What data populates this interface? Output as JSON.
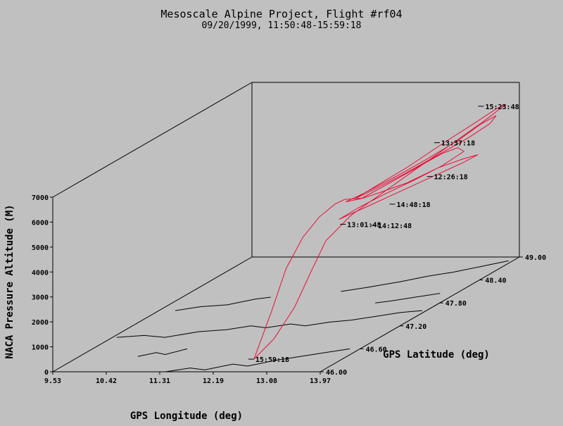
{
  "chart_data": {
    "type": "line",
    "title": "Mesoscale Alpine Project, Flight #rf04",
    "subtitle": "09/20/1999, 11:50:48-15:59:18",
    "xlabel": "GPS Longitude (deg)",
    "ylabel": "GPS Latitude (deg)",
    "zlabel": "NACA Pressure Altitude (M)",
    "x_ticks": [
      "9.53",
      "10.42",
      "11.31",
      "12.19",
      "13.08",
      "13.97"
    ],
    "y_ticks": [
      "46.00",
      "46.60",
      "47.20",
      "47.80",
      "48.40",
      "49.00"
    ],
    "z_ticks": [
      "0",
      "1000",
      "2000",
      "3000",
      "4000",
      "5000",
      "6000",
      "7000"
    ],
    "xlim": [
      9.53,
      13.97
    ],
    "ylim": [
      46.0,
      49.0
    ],
    "zlim": [
      0,
      7000
    ],
    "track_color": "#e8103a",
    "time_labels": [
      {
        "text": "15:23:48",
        "lon": 13.6,
        "lat": 48.8,
        "alt": 6350
      },
      {
        "text": "13:37:18",
        "lon": 13.2,
        "lat": 48.5,
        "alt": 5350
      },
      {
        "text": "12:26:18",
        "lon": 13.3,
        "lat": 48.3,
        "alt": 4300
      },
      {
        "text": "14:48:18",
        "lon": 12.9,
        "lat": 48.1,
        "alt": 3500
      },
      {
        "text": "13:01:48",
        "lon": 12.3,
        "lat": 47.9,
        "alt": 3000
      },
      {
        "text": "14:12:48",
        "lon": 12.7,
        "lat": 48.0,
        "alt": 2800
      },
      {
        "text": "15:59:18",
        "lon": 12.65,
        "lat": 46.2,
        "alt": 200
      }
    ],
    "track": [
      [
        12.65,
        46.2,
        200
      ],
      [
        12.5,
        46.6,
        1500
      ],
      [
        12.3,
        47.0,
        2600
      ],
      [
        12.25,
        47.3,
        3400
      ],
      [
        12.3,
        47.5,
        3900
      ],
      [
        12.4,
        47.65,
        4200
      ],
      [
        12.5,
        47.7,
        4300
      ],
      [
        12.7,
        47.8,
        4200
      ],
      [
        12.9,
        47.9,
        4300
      ],
      [
        13.2,
        48.0,
        4500
      ],
      [
        13.5,
        48.2,
        4800
      ],
      [
        13.8,
        48.3,
        5000
      ],
      [
        14.0,
        48.35,
        5100
      ],
      [
        13.8,
        48.3,
        4850
      ],
      [
        13.5,
        48.2,
        4550
      ],
      [
        13.2,
        48.1,
        4250
      ],
      [
        12.9,
        48.0,
        3950
      ],
      [
        12.6,
        47.9,
        3650
      ],
      [
        12.4,
        47.85,
        3450
      ],
      [
        12.3,
        47.8,
        3350
      ],
      [
        12.5,
        47.9,
        3650
      ],
      [
        12.8,
        48.05,
        4000
      ],
      [
        13.1,
        48.2,
        4300
      ],
      [
        13.4,
        48.35,
        4650
      ],
      [
        13.6,
        48.5,
        5000
      ],
      [
        13.5,
        48.5,
        5150
      ],
      [
        13.3,
        48.45,
        5000
      ],
      [
        13.0,
        48.3,
        4600
      ],
      [
        12.7,
        48.1,
        4200
      ],
      [
        12.5,
        47.95,
        3950
      ],
      [
        12.3,
        47.9,
        3900
      ],
      [
        12.5,
        48.0,
        4100
      ],
      [
        12.8,
        48.2,
        4450
      ],
      [
        13.1,
        48.4,
        4850
      ],
      [
        13.4,
        48.6,
        5300
      ],
      [
        13.6,
        48.75,
        5700
      ],
      [
        13.75,
        48.85,
        5900
      ],
      [
        13.7,
        48.8,
        5650
      ],
      [
        13.5,
        48.65,
        5300
      ],
      [
        13.2,
        48.45,
        4900
      ],
      [
        12.9,
        48.25,
        4500
      ],
      [
        12.6,
        48.05,
        4150
      ],
      [
        12.4,
        47.95,
        3950
      ],
      [
        12.6,
        48.1,
        4250
      ],
      [
        12.9,
        48.3,
        4700
      ],
      [
        13.2,
        48.55,
        5250
      ],
      [
        13.5,
        48.75,
        5750
      ],
      [
        13.7,
        48.9,
        6100
      ],
      [
        13.8,
        48.95,
        6200
      ],
      [
        13.6,
        48.8,
        5750
      ],
      [
        13.3,
        48.55,
        5150
      ],
      [
        13.0,
        48.3,
        4550
      ],
      [
        12.7,
        48.05,
        3950
      ],
      [
        12.45,
        47.85,
        3450
      ],
      [
        12.3,
        47.6,
        2800
      ],
      [
        12.4,
        47.3,
        2100
      ],
      [
        12.55,
        46.9,
        1200
      ],
      [
        12.65,
        46.5,
        550
      ],
      [
        12.65,
        46.2,
        200
      ]
    ],
    "terrain_polylines": [
      [
        [
          9.6,
          46.9
        ],
        [
          10.0,
          46.95
        ],
        [
          10.4,
          46.9
        ],
        [
          10.8,
          47.05
        ],
        [
          11.2,
          47.1
        ],
        [
          11.5,
          47.2
        ],
        [
          11.8,
          47.15
        ],
        [
          12.1,
          47.25
        ],
        [
          12.4,
          47.2
        ],
        [
          12.7,
          47.3
        ],
        [
          13.0,
          47.35
        ],
        [
          13.3,
          47.45
        ],
        [
          13.6,
          47.55
        ],
        [
          13.9,
          47.6
        ]
      ],
      [
        [
          11.4,
          46.0
        ],
        [
          11.7,
          46.1
        ],
        [
          12.0,
          46.05
        ],
        [
          12.3,
          46.2
        ],
        [
          12.6,
          46.15
        ],
        [
          12.9,
          46.3
        ],
        [
          13.2,
          46.4
        ],
        [
          13.5,
          46.5
        ],
        [
          13.8,
          46.6
        ]
      ],
      [
        [
          9.8,
          47.6
        ],
        [
          10.1,
          47.7
        ],
        [
          10.5,
          47.75
        ],
        [
          10.8,
          47.9
        ],
        [
          11.0,
          47.95
        ]
      ],
      [
        [
          12.0,
          48.1
        ],
        [
          12.3,
          48.2
        ],
        [
          12.7,
          48.35
        ],
        [
          13.0,
          48.5
        ],
        [
          13.3,
          48.6
        ],
        [
          13.6,
          48.75
        ],
        [
          13.9,
          48.9
        ]
      ],
      [
        [
          10.5,
          46.4
        ],
        [
          10.7,
          46.5
        ],
        [
          10.9,
          46.45
        ],
        [
          11.1,
          46.6
        ]
      ],
      [
        [
          12.9,
          47.8
        ],
        [
          13.1,
          47.85
        ],
        [
          13.4,
          47.95
        ],
        [
          13.7,
          48.05
        ]
      ]
    ]
  }
}
